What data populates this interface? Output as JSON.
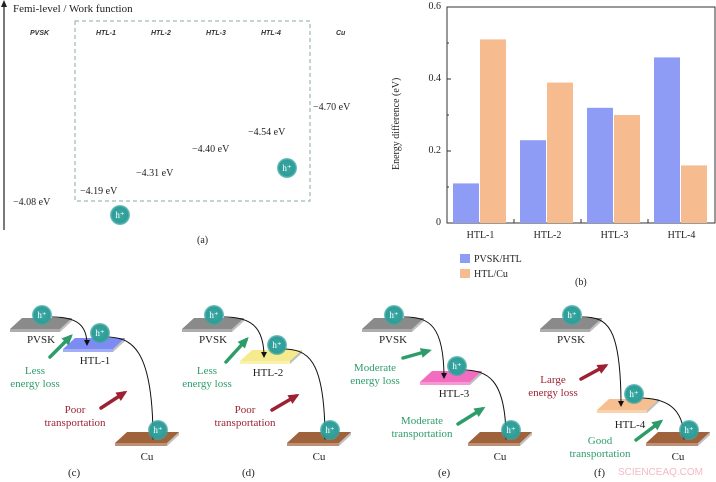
{
  "panel_a": {
    "axis_title": "Femi-level / Work function",
    "layers": [
      "PVSK",
      "HTL-1",
      "HTL-2",
      "HTL-3",
      "HTL-4",
      "Cu"
    ],
    "energies": [
      "−4.08 eV",
      "−4.19 eV",
      "−4.31 eV",
      "−4.40 eV",
      "−4.54 eV",
      "−4.70 eV"
    ],
    "hole_label": "h⁺",
    "caption": "(a)"
  },
  "chart_data": {
    "type": "bar",
    "categories": [
      "HTL-1",
      "HTL-2",
      "HTL-3",
      "HTL-4"
    ],
    "series": [
      {
        "name": "PVSK/HTL",
        "values": [
          0.11,
          0.23,
          0.32,
          0.46
        ],
        "color": "#8f9cf5"
      },
      {
        "name": "HTL/Cu",
        "values": [
          0.51,
          0.39,
          0.3,
          0.16
        ],
        "color": "#f6bb8f"
      }
    ],
    "ylabel": "Energy difference (eV)",
    "ylim": [
      0,
      0.6
    ],
    "yticks": [
      "0",
      "0.2",
      "0.4",
      "0.6"
    ],
    "yticks_values": [
      0,
      0.2,
      0.4,
      0.6
    ],
    "grid": false,
    "legend_placement": "bottom-left",
    "caption": "(b)"
  },
  "schemes": [
    {
      "caption": "(c)",
      "htl": "HTL-1",
      "htl_color": "#7d8cf2",
      "loss_text": [
        "Less",
        "energy loss"
      ],
      "loss_color": "green",
      "transport_text": [
        "Poor",
        "transportation"
      ],
      "transport_color": "red"
    },
    {
      "caption": "(d)",
      "htl": "HTL-2",
      "htl_color": "#f5eb8e",
      "loss_text": [
        "Less",
        "energy loss"
      ],
      "loss_color": "green",
      "transport_text": [
        "Poor",
        "transportation"
      ],
      "transport_color": "red"
    },
    {
      "caption": "(e)",
      "htl": "HTL-3",
      "htl_color": "#f26cc0",
      "loss_text": [
        "Moderate",
        "energy loss"
      ],
      "loss_color": "green",
      "transport_text": [
        "Moderate",
        "transportation"
      ],
      "transport_color": "green"
    },
    {
      "caption": "(f)",
      "htl": "HTL-4",
      "htl_color": "#f7bf8f",
      "loss_text": [
        "Large",
        "energy loss"
      ],
      "loss_color": "red",
      "transport_text": [
        "Good",
        "transportation"
      ],
      "transport_color": "green"
    }
  ],
  "scheme_labels": {
    "pvsk": "PVSK",
    "cu": "Cu",
    "hole": "h⁺"
  },
  "colors": {
    "pvsk": "#8a8a8a",
    "cu": "#a0623a",
    "hole": "#2f9c97",
    "green": "#2e9c6a",
    "red": "#9c2233"
  },
  "watermark": "SCIENCEAQ.COM"
}
